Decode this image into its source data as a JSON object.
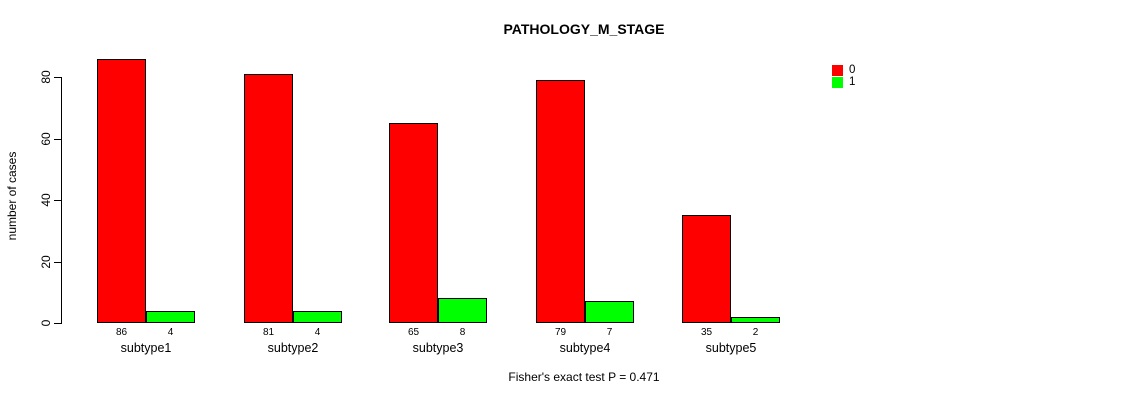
{
  "chart_data": {
    "type": "bar",
    "title": "PATHOLOGY_M_STAGE",
    "categories": [
      "subtype1",
      "subtype2",
      "subtype3",
      "subtype4",
      "subtype5"
    ],
    "series": [
      {
        "name": "0",
        "color": "#ff0000",
        "values": [
          86,
          81,
          65,
          79,
          35
        ]
      },
      {
        "name": "1",
        "color": "#00ff00",
        "values": [
          4,
          4,
          8,
          7,
          2
        ]
      }
    ],
    "xlabel": "",
    "ylabel": "number of cases",
    "yticks": [
      0,
      20,
      40,
      60,
      80
    ],
    "ylim": [
      0,
      86
    ],
    "grid": false,
    "legend_position": "top-right",
    "values_shown_under_bars": true,
    "bar_border_color": "#000000",
    "annotation": "Fisher's exact test P = 0.471"
  }
}
